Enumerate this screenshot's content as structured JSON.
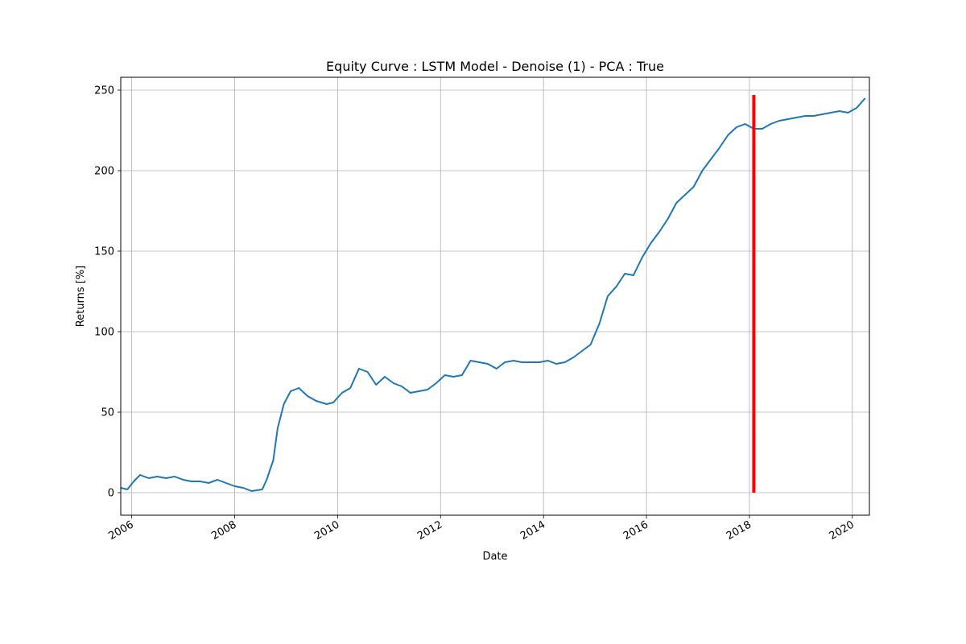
{
  "chart_data": {
    "type": "line",
    "title": "Equity Curve : LSTM Model - Denoise (1) - PCA : True",
    "xlabel": "Date",
    "ylabel": "Returns [%]",
    "x_ticks": [
      "2006",
      "2008",
      "2010",
      "2012",
      "2014",
      "2016",
      "2018",
      "2020"
    ],
    "y_ticks": [
      0,
      50,
      100,
      150,
      200,
      250
    ],
    "xlim": [
      "2005-10-15",
      "2020-05-01"
    ],
    "ylim": [
      -14,
      258
    ],
    "grid": true,
    "series": [
      {
        "color": "#1f77b4",
        "x": [
          "2005-10-15",
          "2005-12-01",
          "2006-01-15",
          "2006-03-01",
          "2006-05-01",
          "2006-07-01",
          "2006-09-01",
          "2006-11-01",
          "2007-01-01",
          "2007-03-01",
          "2007-05-01",
          "2007-07-01",
          "2007-09-01",
          "2007-11-01",
          "2008-01-01",
          "2008-03-01",
          "2008-05-01",
          "2008-07-15",
          "2008-08-15",
          "2008-10-01",
          "2008-11-01",
          "2008-12-15",
          "2009-02-01",
          "2009-04-01",
          "2009-06-01",
          "2009-08-01",
          "2009-10-15",
          "2009-12-01",
          "2010-02-01",
          "2010-04-01",
          "2010-06-01",
          "2010-08-01",
          "2010-10-01",
          "2010-12-01",
          "2011-02-01",
          "2011-04-01",
          "2011-06-01",
          "2011-08-01",
          "2011-10-01",
          "2011-12-01",
          "2012-02-01",
          "2012-04-01",
          "2012-06-01",
          "2012-08-01",
          "2012-10-01",
          "2012-12-01",
          "2013-02-01",
          "2013-04-01",
          "2013-06-01",
          "2013-08-01",
          "2013-10-01",
          "2013-12-01",
          "2014-02-01",
          "2014-04-01",
          "2014-06-01",
          "2014-08-01",
          "2014-10-01",
          "2014-12-01",
          "2015-02-01",
          "2015-04-01",
          "2015-06-01",
          "2015-08-01",
          "2015-10-01",
          "2015-12-01",
          "2016-02-01",
          "2016-04-01",
          "2016-06-01",
          "2016-08-01",
          "2016-10-01",
          "2016-12-01",
          "2017-02-01",
          "2017-04-01",
          "2017-06-01",
          "2017-08-01",
          "2017-10-01",
          "2017-12-01",
          "2018-02-01",
          "2018-04-01",
          "2018-06-01",
          "2018-08-01",
          "2018-10-01",
          "2018-12-01",
          "2019-02-01",
          "2019-04-01",
          "2019-06-01",
          "2019-08-01",
          "2019-10-01",
          "2019-12-01",
          "2020-02-01",
          "2020-04-01"
        ],
        "y": [
          3,
          2,
          7,
          11,
          9,
          10,
          9,
          10,
          8,
          7,
          7,
          6,
          8,
          6,
          4,
          3,
          1,
          2,
          8,
          20,
          40,
          55,
          63,
          65,
          60,
          57,
          55,
          56,
          62,
          65,
          77,
          75,
          67,
          72,
          68,
          66,
          62,
          63,
          64,
          68,
          73,
          72,
          73,
          82,
          81,
          80,
          77,
          81,
          82,
          81,
          81,
          81,
          82,
          80,
          81,
          84,
          88,
          92,
          105,
          122,
          128,
          136,
          135,
          146,
          155,
          162,
          170,
          180,
          185,
          190,
          200,
          207,
          214,
          222,
          227,
          229,
          226,
          226,
          229,
          231,
          232,
          233,
          234,
          234,
          235,
          236,
          237,
          236,
          239,
          245
        ]
      }
    ],
    "markers": [
      {
        "type": "vertical-line",
        "x": "2018-02-01",
        "y_from": 0,
        "y_to": 247,
        "color": "#ff0000"
      }
    ]
  }
}
